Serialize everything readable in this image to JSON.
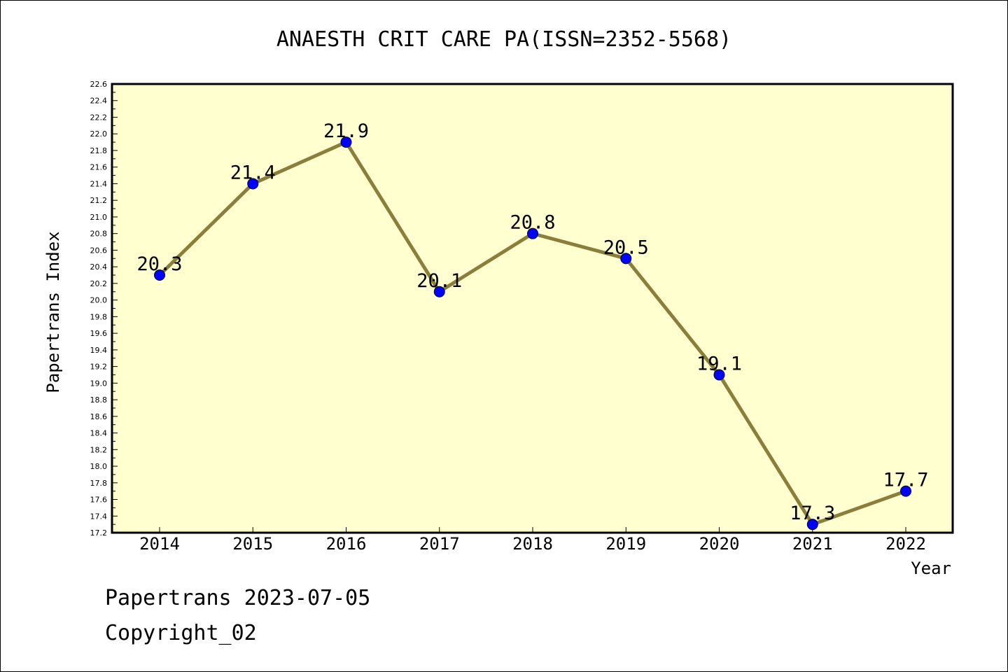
{
  "chart_data": {
    "type": "line",
    "title": "ANAESTH CRIT CARE PA(ISSN=2352-5568)",
    "xlabel": "Year",
    "ylabel": "Papertrans Index",
    "categories": [
      "2014",
      "2015",
      "2016",
      "2017",
      "2018",
      "2019",
      "2020",
      "2021",
      "2022"
    ],
    "series": [
      {
        "values": [
          20.3,
          21.4,
          21.9,
          20.1,
          20.8,
          20.5,
          19.1,
          17.3,
          17.7
        ],
        "data_labels": [
          "20.3",
          "21.4",
          "21.9",
          "20.1",
          "20.8",
          "20.5",
          "19.1",
          "17.3",
          "17.7"
        ],
        "line_color": "#8b7d3a",
        "marker_color": "#0000ff"
      }
    ],
    "ylim": [
      17.2,
      22.6
    ],
    "yticks": [
      "17.2",
      "17.4",
      "17.6",
      "17.8",
      "18.0",
      "18.2",
      "18.4",
      "18.6",
      "18.8",
      "19.0",
      "19.2",
      "19.4",
      "19.6",
      "19.8",
      "20.0",
      "20.2",
      "20.4",
      "20.6",
      "20.8",
      "21.0",
      "21.2",
      "21.4",
      "21.6",
      "21.8",
      "22.0",
      "22.2",
      "22.4",
      "22.6"
    ],
    "plot_background": "#ffffd0",
    "grid": false,
    "legend": "none"
  },
  "footer": {
    "line1": "Papertrans 2023-07-05",
    "line2": "Copyright_02"
  }
}
